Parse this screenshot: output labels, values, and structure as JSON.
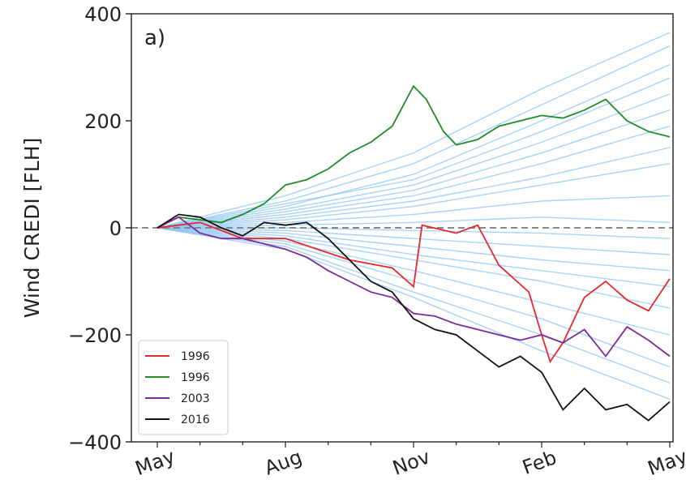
{
  "chart_data": {
    "type": "line",
    "title": "",
    "panel_label": "a)",
    "xlabel": "",
    "ylabel": "Wind CREDI [FLH]",
    "x_ticks": [
      "May",
      "Aug",
      "Nov",
      "Feb",
      "May"
    ],
    "x_range": [
      0,
      12
    ],
    "ylim": [
      -400,
      400
    ],
    "y_ticks": [
      -400,
      -200,
      0,
      200,
      400
    ],
    "y_tick_labels": [
      "−400",
      "−200",
      "0",
      "200",
      "400"
    ],
    "grid": false,
    "reference_line": {
      "y": 0,
      "style": "dashed",
      "color": "#888888"
    },
    "legend_position": "lower-left",
    "colors": {
      "background_ensemble": "#8cc3f5",
      "red": "#e8262b",
      "green": "#1f8c2a",
      "purple": "#7b2a99",
      "black": "#111111"
    },
    "series": [
      {
        "name": "1996",
        "color": "#e8262b",
        "x": [
          0,
          1,
          2,
          3,
          4.5,
          5.5,
          6,
          6.2,
          7,
          7.5,
          8,
          8.7,
          9,
          9.2,
          9.5,
          10,
          10.5,
          11,
          11.5,
          12
        ],
        "y": [
          0,
          10,
          -20,
          -20,
          -60,
          -75,
          -110,
          5,
          -10,
          5,
          -70,
          -120,
          -200,
          -250,
          -215,
          -130,
          -100,
          -135,
          -155,
          -95
        ]
      },
      {
        "name": "1996",
        "color": "#1f8c2a",
        "x": [
          0,
          0.5,
          1,
          1.5,
          2,
          2.5,
          3,
          3.5,
          4,
          4.5,
          5,
          5.5,
          6,
          6.3,
          6.7,
          7,
          7.5,
          8,
          8.5,
          9,
          9.5,
          10,
          10.5,
          11,
          11.5,
          12
        ],
        "y": [
          0,
          20,
          15,
          10,
          25,
          45,
          80,
          90,
          110,
          140,
          160,
          190,
          265,
          240,
          180,
          155,
          165,
          190,
          200,
          210,
          205,
          220,
          240,
          200,
          180,
          170
        ]
      },
      {
        "name": "2003",
        "color": "#7b2a99",
        "x": [
          0,
          0.5,
          1,
          1.5,
          2,
          2.5,
          3,
          3.5,
          4,
          4.5,
          5,
          5.5,
          6,
          6.5,
          7,
          7.5,
          8,
          8.5,
          9,
          9.5,
          10,
          10.5,
          11,
          11.5,
          12
        ],
        "y": [
          0,
          20,
          -10,
          -20,
          -20,
          -30,
          -40,
          -55,
          -80,
          -100,
          -120,
          -130,
          -160,
          -165,
          -180,
          -190,
          -200,
          -210,
          -200,
          -215,
          -190,
          -240,
          -185,
          -210,
          -240
        ]
      },
      {
        "name": "2016",
        "color": "#111111",
        "x": [
          0,
          0.5,
          1,
          1.5,
          2,
          2.5,
          3,
          3.5,
          4,
          4.5,
          5,
          5.5,
          6,
          6.5,
          7,
          7.5,
          8,
          8.5,
          9,
          9.5,
          10,
          10.5,
          11,
          11.5,
          12
        ],
        "y": [
          0,
          25,
          20,
          0,
          -15,
          10,
          5,
          10,
          -20,
          -60,
          -100,
          -120,
          -170,
          -190,
          -200,
          -230,
          -260,
          -240,
          -270,
          -340,
          -300,
          -340,
          -330,
          -360,
          -325
        ]
      }
    ],
    "ensemble": [
      {
        "x": [
          0,
          3,
          6,
          9,
          12
        ],
        "y": [
          0,
          60,
          140,
          260,
          365
        ]
      },
      {
        "x": [
          0,
          3,
          6,
          9,
          12
        ],
        "y": [
          0,
          50,
          120,
          230,
          340
        ]
      },
      {
        "x": [
          0,
          3,
          6,
          9,
          12
        ],
        "y": [
          0,
          40,
          100,
          200,
          305
        ]
      },
      {
        "x": [
          0,
          3,
          6,
          9,
          12
        ],
        "y": [
          0,
          45,
          90,
          180,
          280
        ]
      },
      {
        "x": [
          0,
          3,
          6,
          9,
          12
        ],
        "y": [
          0,
          35,
          80,
          160,
          250
        ]
      },
      {
        "x": [
          0,
          3,
          6,
          9,
          12
        ],
        "y": [
          0,
          30,
          70,
          140,
          220
        ]
      },
      {
        "x": [
          0,
          3,
          6,
          9,
          12
        ],
        "y": [
          0,
          25,
          60,
          120,
          190
        ]
      },
      {
        "x": [
          0,
          3,
          6,
          9,
          12
        ],
        "y": [
          0,
          20,
          50,
          95,
          150
        ]
      },
      {
        "x": [
          0,
          3,
          6,
          9,
          12
        ],
        "y": [
          0,
          15,
          40,
          80,
          120
        ]
      },
      {
        "x": [
          0,
          3,
          6,
          9,
          12
        ],
        "y": [
          0,
          10,
          25,
          50,
          60
        ]
      },
      {
        "x": [
          0,
          3,
          6,
          9,
          12
        ],
        "y": [
          0,
          5,
          10,
          20,
          10
        ]
      },
      {
        "x": [
          0,
          3,
          6,
          9,
          12
        ],
        "y": [
          0,
          0,
          -5,
          -10,
          -20
        ]
      },
      {
        "x": [
          0,
          3,
          6,
          9,
          12
        ],
        "y": [
          0,
          -5,
          -20,
          -35,
          -50
        ]
      },
      {
        "x": [
          0,
          3,
          6,
          9,
          12
        ],
        "y": [
          0,
          -10,
          -35,
          -60,
          -80
        ]
      },
      {
        "x": [
          0,
          3,
          6,
          9,
          12
        ],
        "y": [
          0,
          -15,
          -50,
          -80,
          -110
        ]
      },
      {
        "x": [
          0,
          3,
          6,
          9,
          12
        ],
        "y": [
          0,
          -20,
          -60,
          -100,
          -150
        ]
      },
      {
        "x": [
          0,
          3,
          6,
          9,
          12
        ],
        "y": [
          0,
          -25,
          -80,
          -140,
          -200
        ]
      },
      {
        "x": [
          0,
          3,
          6,
          9,
          12
        ],
        "y": [
          0,
          -30,
          -100,
          -170,
          -260
        ]
      },
      {
        "x": [
          0,
          3,
          6,
          9,
          12
        ],
        "y": [
          0,
          -35,
          -120,
          -200,
          -290
        ]
      },
      {
        "x": [
          0,
          3,
          6,
          9,
          12
        ],
        "y": [
          0,
          -40,
          -130,
          -230,
          -320
        ]
      }
    ]
  }
}
